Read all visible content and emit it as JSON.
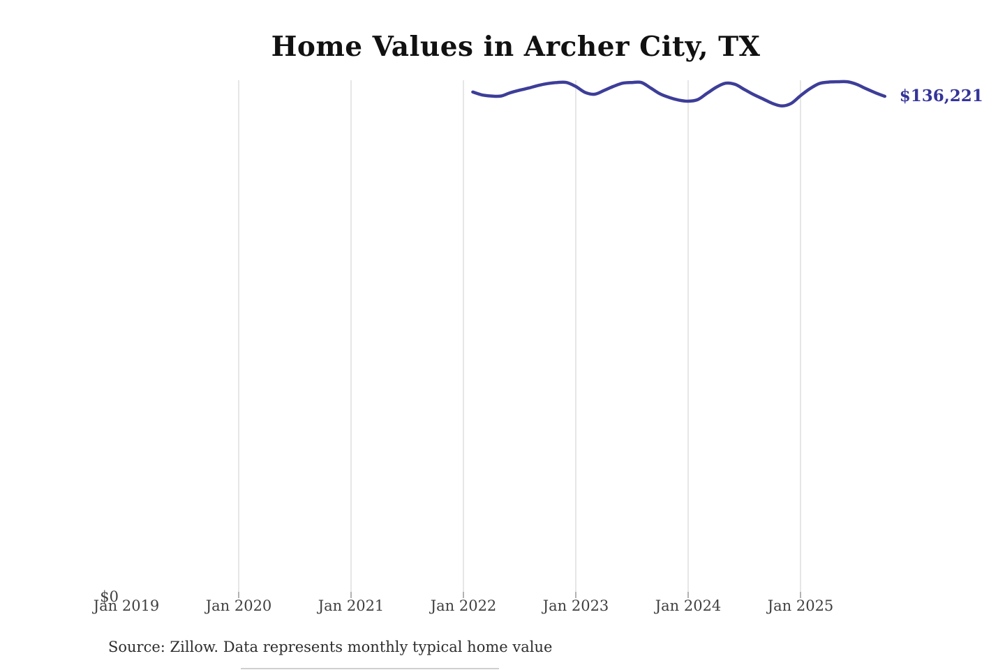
{
  "page": {
    "background": "#ffffff"
  },
  "chart_data": {
    "type": "line",
    "title": "Home Values in Archer City, TX",
    "source_note": "Source: Zillow. Data represents monthly typical home value",
    "end_label": "$136,221",
    "y_zero_label": "$0",
    "line_color": "#3d3d99",
    "label_color": "#34349a",
    "gridline_color": "#cccccc",
    "tick_color": "#666666",
    "grid": "vertical-only",
    "legend": "none",
    "ylim": [
      0,
      141000
    ],
    "x_axis_ticks": [
      "Jan 2019",
      "Jan 2020",
      "Jan 2021",
      "Jan 2022",
      "Jan 2023",
      "Jan 2024",
      "Jan 2025"
    ],
    "x": [
      "Feb 2022",
      "Mar 2022",
      "Apr 2022",
      "May 2022",
      "Jun 2022",
      "Jul 2022",
      "Aug 2022",
      "Sep 2022",
      "Oct 2022",
      "Nov 2022",
      "Dec 2022",
      "Jan 2023",
      "Feb 2023",
      "Mar 2023",
      "Apr 2023",
      "May 2023",
      "Jun 2023",
      "Jul 2023",
      "Aug 2023",
      "Sep 2023",
      "Oct 2023",
      "Nov 2023",
      "Dec 2023",
      "Jan 2024",
      "Feb 2024",
      "Mar 2024",
      "Apr 2024",
      "May 2024",
      "Jun 2024",
      "Jul 2024",
      "Aug 2024",
      "Sep 2024",
      "Oct 2024",
      "Nov 2024",
      "Dec 2024",
      "Jan 2025",
      "Feb 2025",
      "Mar 2025",
      "Apr 2025",
      "May 2025",
      "Jun 2025",
      "Jul 2025",
      "Aug 2025",
      "Sep 2025",
      "Oct 2025"
    ],
    "values": [
      137400,
      136600,
      136300,
      136300,
      137200,
      137900,
      138500,
      139200,
      139700,
      140000,
      140000,
      138900,
      137300,
      136800,
      137800,
      138900,
      139800,
      140000,
      140000,
      138500,
      136900,
      135900,
      135200,
      134900,
      135300,
      137000,
      138700,
      139800,
      139500,
      138100,
      136700,
      135500,
      134300,
      133600,
      134300,
      136400,
      138300,
      139700,
      140100,
      140200,
      140200,
      139500,
      138300,
      137200,
      136221
    ]
  }
}
